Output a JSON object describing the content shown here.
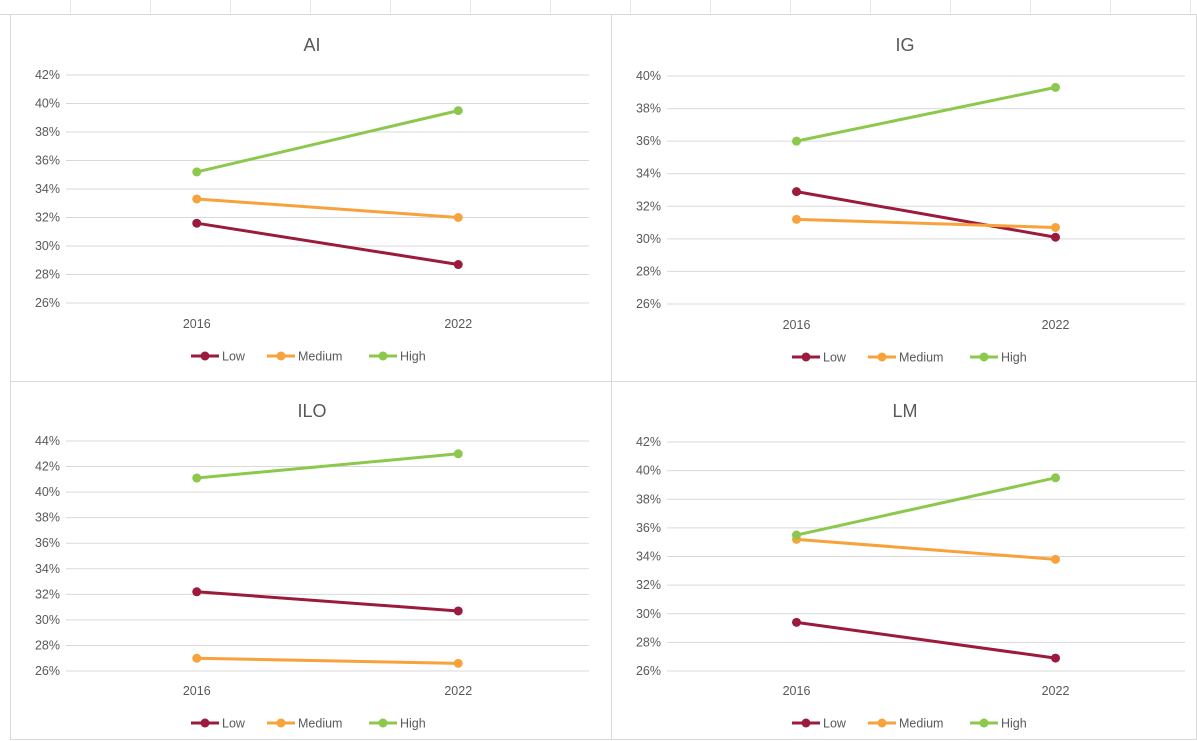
{
  "colors": {
    "Low": "#9b1b3d",
    "Medium": "#f7a23b",
    "High": "#8cc84b",
    "grid": "#d9d9d9",
    "text": "#595959"
  },
  "chart_data": [
    {
      "type": "line",
      "title": "AI",
      "categories": [
        "2016",
        "2022"
      ],
      "ylim": [
        0.26,
        0.42
      ],
      "yticks": [
        "26%",
        "28%",
        "30%",
        "32%",
        "34%",
        "36%",
        "38%",
        "40%",
        "42%"
      ],
      "grid": true,
      "legend": "bottom",
      "series": [
        {
          "name": "Low",
          "values": [
            0.316,
            0.287
          ]
        },
        {
          "name": "Medium",
          "values": [
            0.333,
            0.32
          ]
        },
        {
          "name": "High",
          "values": [
            0.352,
            0.395
          ]
        }
      ]
    },
    {
      "type": "line",
      "title": "IG",
      "categories": [
        "2016",
        "2022"
      ],
      "ylim": [
        0.26,
        0.4
      ],
      "yticks": [
        "26%",
        "28%",
        "30%",
        "32%",
        "34%",
        "36%",
        "38%",
        "40%"
      ],
      "grid": true,
      "legend": "bottom",
      "series": [
        {
          "name": "Low",
          "values": [
            0.329,
            0.301
          ]
        },
        {
          "name": "Medium",
          "values": [
            0.312,
            0.307
          ]
        },
        {
          "name": "High",
          "values": [
            0.36,
            0.393
          ]
        }
      ]
    },
    {
      "type": "line",
      "title": "ILO",
      "categories": [
        "2016",
        "2022"
      ],
      "ylim": [
        0.26,
        0.44
      ],
      "yticks": [
        "26%",
        "28%",
        "30%",
        "32%",
        "34%",
        "36%",
        "38%",
        "40%",
        "42%",
        "44%"
      ],
      "grid": true,
      "legend": "bottom",
      "series": [
        {
          "name": "Low",
          "values": [
            0.322,
            0.307
          ]
        },
        {
          "name": "Medium",
          "values": [
            0.27,
            0.266
          ]
        },
        {
          "name": "High",
          "values": [
            0.411,
            0.43
          ]
        }
      ]
    },
    {
      "type": "line",
      "title": "LM",
      "categories": [
        "2016",
        "2022"
      ],
      "ylim": [
        0.26,
        0.42
      ],
      "yticks": [
        "26%",
        "28%",
        "30%",
        "32%",
        "34%",
        "36%",
        "38%",
        "40%",
        "42%"
      ],
      "grid": true,
      "legend": "bottom",
      "series": [
        {
          "name": "Low",
          "values": [
            0.294,
            0.269
          ]
        },
        {
          "name": "Medium",
          "values": [
            0.352,
            0.338
          ]
        },
        {
          "name": "High",
          "values": [
            0.355,
            0.395
          ]
        }
      ]
    }
  ]
}
